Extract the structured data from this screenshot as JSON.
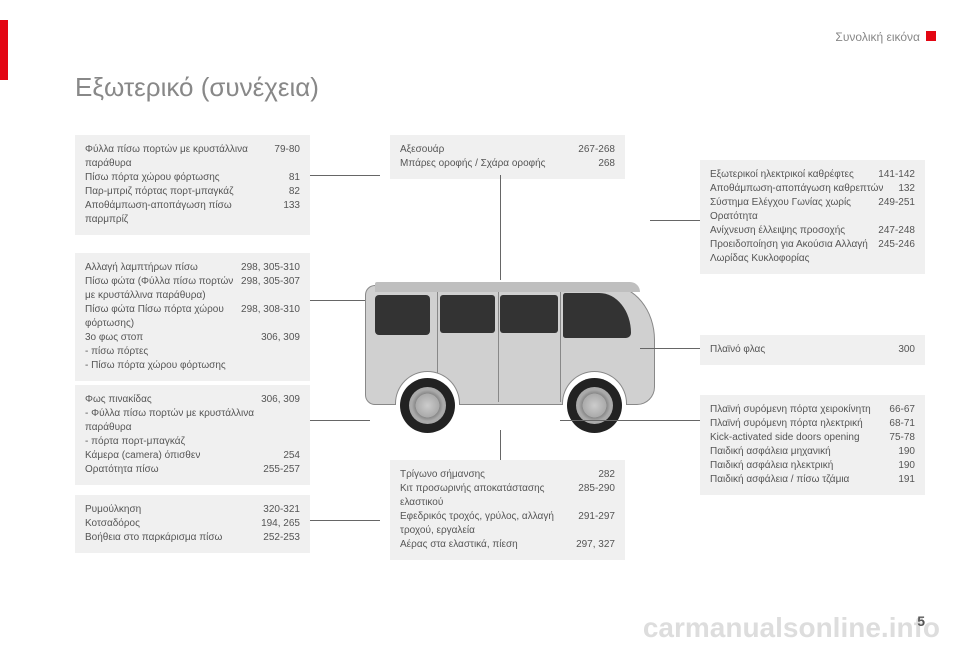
{
  "header": "Συνολική εικόνα",
  "title": "Εξωτερικό (συνέχεια)",
  "page_number": "5",
  "watermark": "carmanualsonline.info",
  "boxes": {
    "top_left_1": [
      {
        "label": "Φύλλα πίσω πορτών με κρυστάλλινα παράθυρα",
        "pages": "79-80"
      },
      {
        "label": "Πίσω πόρτα χώρου φόρτωσης",
        "pages": "81"
      },
      {
        "label": "Παρ-μπριζ πόρτας πορτ-μπαγκάζ",
        "pages": "82"
      },
      {
        "label": "Αποθάμπωση-αποπάγωση πίσω παρμπρίζ",
        "pages": "133"
      }
    ],
    "left_2": [
      {
        "label": "Αλλαγή λαμπτήρων πίσω",
        "pages": "298, 305-310"
      },
      {
        "label": "Πίσω φώτα (Φύλλα πίσω πορτών με κρυστάλλινα παράθυρα)",
        "pages": "298, 305-307"
      },
      {
        "label": "Πίσω φώτα Πίσω πόρτα χώρου φόρτωσης)",
        "pages": "298, 308-310"
      },
      {
        "label": "3ο φως στοπ",
        "pages": "306, 309"
      },
      {
        "label": "-    πίσω πόρτες",
        "pages": ""
      },
      {
        "label": "-    Πίσω πόρτα χώρου φόρτωσης",
        "pages": ""
      }
    ],
    "left_3": [
      {
        "label": "Φως πινακίδας",
        "pages": "306, 309"
      },
      {
        "label": "-    Φύλλα πίσω πορτών με κρυστάλλινα παράθυρα",
        "pages": ""
      },
      {
        "label": "-    πόρτα πορτ-μπαγκάζ",
        "pages": ""
      },
      {
        "label": "Κάμερα (camera) όπισθεν",
        "pages": "254"
      },
      {
        "label": "Ορατότητα πίσω",
        "pages": "255-257"
      }
    ],
    "left_4": [
      {
        "label": "Ρυμούλκηση",
        "pages": "320-321"
      },
      {
        "label": "Κοτσαδόρος",
        "pages": "194, 265"
      },
      {
        "label": "Βοήθεια στο παρκάρισμα πίσω",
        "pages": "252-253"
      }
    ],
    "top_center": [
      {
        "label": "Αξεσουάρ",
        "pages": "267-268"
      },
      {
        "label": "Μπάρες οροφής / Σχάρα οροφής",
        "pages": "268"
      }
    ],
    "bottom_center": [
      {
        "label": "Τρίγωνο σήμανσης",
        "pages": "282"
      },
      {
        "label": "Κιτ προσωρινής αποκατάστασης ελαστικού",
        "pages": "285-290"
      },
      {
        "label": "Εφεδρικός τροχός, γρύλος, αλλαγή τροχού, εργαλεία",
        "pages": "291-297"
      },
      {
        "label": "Αέρας στα ελαστικά, πίεση",
        "pages": "297, 327"
      }
    ],
    "right_1": [
      {
        "label": "Εξωτερικοί ηλεκτρικοί καθρέφτες",
        "pages": "141-142"
      },
      {
        "label": "Αποθάμπωση-αποπάγωση καθρεπτών",
        "pages": "132"
      },
      {
        "label": "Σύστημα Ελέγχου Γωνίας χωρίς Ορατότητα",
        "pages": "249-251"
      },
      {
        "label": "Ανίχνευση έλλειψης προσοχής",
        "pages": "247-248"
      },
      {
        "label": "Προειδοποίηση για Ακούσια Αλλαγή Λωρίδας Κυκλοφορίας",
        "pages": "245-246"
      }
    ],
    "right_2": [
      {
        "label": "Πλαϊνό φλας",
        "pages": "300"
      }
    ],
    "right_3": [
      {
        "label": "Πλαϊνή συρόμενη πόρτα χειροκίνητη",
        "pages": "66-67"
      },
      {
        "label": "Πλαϊνή συρόμενη πόρτα ηλεκτρική",
        "pages": "68-71"
      },
      {
        "label": "Kick-activated side doors opening",
        "pages": "75-78"
      },
      {
        "label": "Παιδική ασφάλεια μηχανική",
        "pages": "190"
      },
      {
        "label": "Παιδική ασφάλεια ηλεκτρική",
        "pages": "190"
      },
      {
        "label": "Παιδική ασφάλεια / πίσω τζάμια",
        "pages": "191"
      }
    ]
  }
}
